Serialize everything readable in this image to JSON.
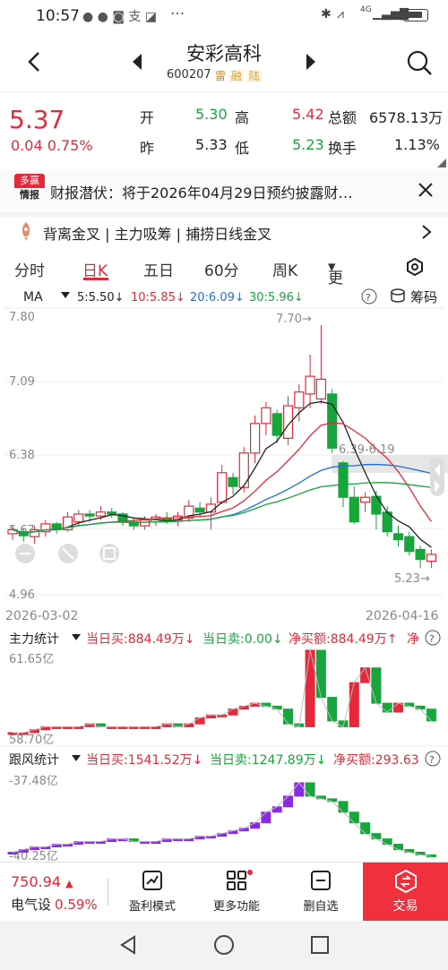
{
  "status": {
    "time": "10:57",
    "icons": [
      "wechat-icon",
      "message-icon",
      "app-icon",
      "alipay-icon",
      "app2-icon"
    ],
    "dots": "···",
    "right_icons": [
      "bluetooth-icon",
      "vibrate-icon",
      "wifi-icon",
      "signal-icon",
      "battery-icon"
    ],
    "net": "4G"
  },
  "header": {
    "title": "安彩高科",
    "code": "600207",
    "badges": [
      "雷",
      "融",
      "陆"
    ]
  },
  "quote": {
    "price": "5.37",
    "change": "0.04",
    "pct": "0.75%",
    "open_label": "开",
    "open": "5.30",
    "high_label": "高",
    "high": "5.42",
    "total_label": "总额",
    "total": "6578.13万",
    "prev_label": "昨",
    "prev": "5.33",
    "low_label": "低",
    "low": "5.23",
    "turnover_label": "换手",
    "turnover": "1.13%"
  },
  "news": {
    "logo_top": "多赢",
    "logo_bottom": "情报",
    "text": "财报潜伏：将于2026年04月29日预约披露财…"
  },
  "signal": {
    "text": "背离金叉 | 主力吸筹 | 捕捞日线金叉"
  },
  "tabs": [
    "分时",
    "日K",
    "五日",
    "60分",
    "周K",
    "更多"
  ],
  "active_tab": "日K",
  "ma": {
    "label": "MA",
    "ma5": "5:5.50↓",
    "ma10": "10:5.85↓",
    "ma20": "20:6.09↓",
    "ma30": "30:5.96↓",
    "chip": "筹码"
  },
  "kline": {
    "y_labels": [
      "7.80",
      "7.09",
      "6.38",
      "5.67",
      "4.96"
    ],
    "max_label": "7.70→",
    "min_label": "5.23→",
    "gap_label": "6.39-6.19",
    "date_start": "2026-03-02",
    "date_end": "2026-04-16"
  },
  "main_flow": {
    "label": "主力统计",
    "buy": "当日买:884.49万↓",
    "sell": "当日卖:0.00↓",
    "net": "净买额:884.49万↑",
    "net2": "净",
    "y_top": "61.65亿",
    "y_bottom": "58.70亿"
  },
  "follow_flow": {
    "label": "跟风统计",
    "buy": "当日买:1541.52万↓",
    "sell": "当日卖:1247.89万↓",
    "net": "净买额:293.63",
    "y_top": "-37.48亿",
    "y_bottom": "-40.25亿"
  },
  "bottom": {
    "index_value": "750.94",
    "index_name": "电气设",
    "index_pct": "0.59%",
    "items": [
      "盈利模式",
      "更多功能",
      "删自选"
    ],
    "trade": "交易"
  },
  "colors": {
    "up": "#e5283a",
    "down": "#17a53c",
    "accent": "#e5283a"
  }
}
